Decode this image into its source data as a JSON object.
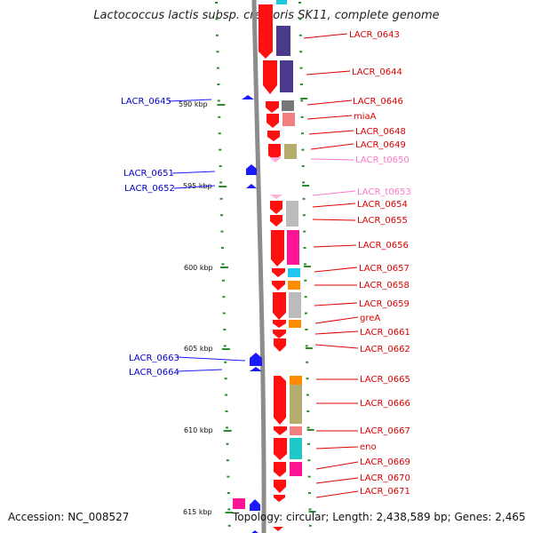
{
  "title": "Lactococcus lactis subsp. cremoris SK11, complete genome",
  "footer": {
    "accession": "Accession: NC_008527",
    "topology": "Topology: circular; Length: 2,438,589 bp; Genes: 2,465"
  },
  "colors": {
    "axis": "#888888",
    "tick": "#2e8b2e",
    "forward_gene": "#1a1aff",
    "reverse_gene": "#ff1a1a",
    "forward_label": "#0000cc",
    "reverse_label": "#dd0000",
    "rna_label": "#ff77c8"
  },
  "ruler": [
    {
      "label": "590 kbp",
      "pos_kbp": 590
    },
    {
      "label": "595 kbp",
      "pos_kbp": 595
    },
    {
      "label": "600 kbp",
      "pos_kbp": 600
    },
    {
      "label": "605 kbp",
      "pos_kbp": 605
    },
    {
      "label": "610 kbp",
      "pos_kbp": 610
    },
    {
      "label": "615 kbp",
      "pos_kbp": 615
    }
  ],
  "reverse_genes": [
    {
      "name": "LACR_0643",
      "cog": "#4b3a8c"
    },
    {
      "name": "LACR_0644",
      "cog": "#4b3a8c"
    },
    {
      "name": "LACR_0646",
      "cog": "#777777"
    },
    {
      "name": "miaA",
      "cog": "#f08080"
    },
    {
      "name": "LACR_0648",
      "cog": ""
    },
    {
      "name": "LACR_0649",
      "cog": "#b5ad6e"
    },
    {
      "name": "LACR_t0650",
      "cog": "",
      "rna": true
    },
    {
      "name": "LACR_t0653",
      "cog": "",
      "rna": true
    },
    {
      "name": "LACR_0654",
      "cog": "#bbbbbb"
    },
    {
      "name": "LACR_0655",
      "cog": "#bbbbbb"
    },
    {
      "name": "LACR_0656",
      "cog": "#ff1493"
    },
    {
      "name": "LACR_0657",
      "cog": "#1ec8f0"
    },
    {
      "name": "LACR_0658",
      "cog": "#ff8c00"
    },
    {
      "name": "LACR_0659",
      "cog": "#bbbbbb"
    },
    {
      "name": "greA",
      "cog": "#ff8c00"
    },
    {
      "name": "LACR_0661",
      "cog": ""
    },
    {
      "name": "LACR_0662",
      "cog": ""
    },
    {
      "name": "LACR_0665",
      "cog": "#ff8c00"
    },
    {
      "name": "LACR_0666",
      "cog": "#b5ad6e"
    },
    {
      "name": "LACR_0667",
      "cog": "#f08080"
    },
    {
      "name": "eno",
      "cog": "#1ec8c8"
    },
    {
      "name": "LACR_0669",
      "cog": "#ff1493"
    },
    {
      "name": "LACR_0670",
      "cog": ""
    },
    {
      "name": "LACR_0671",
      "cog": ""
    }
  ],
  "forward_genes": [
    {
      "name": "LACR_0645"
    },
    {
      "name": "LACR_0651"
    },
    {
      "name": "LACR_0652"
    },
    {
      "name": "LACR_0663"
    },
    {
      "name": "LACR_0664"
    }
  ]
}
